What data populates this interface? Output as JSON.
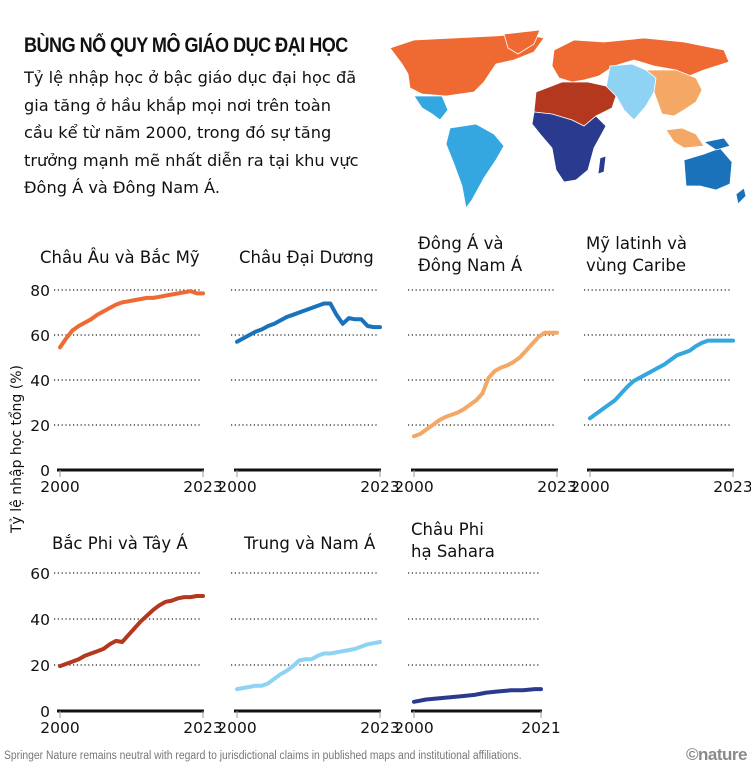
{
  "header": {
    "title": "BÙNG NỔ QUY MÔ GIÁO DỤC ĐẠI HỌC",
    "subtitle": "Tỷ lệ nhập học ở bậc giáo dục đại học đã gia tăng ở hầu khắp mọi nơi trên toàn cầu kể từ năm 2000, trong đó sự tăng trưởng mạnh mẽ nhất diễn ra tại khu vực Đông Á và Đông Nam Á."
  },
  "map": {
    "regions": [
      {
        "name": "Châu Âu và Bắc Mỹ",
        "color": "#ef6a32"
      },
      {
        "name": "Châu Đại Dương",
        "color": "#1a72bb"
      },
      {
        "name": "Đông Á và Đông Nam Á",
        "color": "#f5a765"
      },
      {
        "name": "Mỹ latinh và vùng Caribe",
        "color": "#34a7e0"
      },
      {
        "name": "Bắc Phi và Tây Á",
        "color": "#b3381e"
      },
      {
        "name": "Trung và Nam Á",
        "color": "#8fd3f4"
      },
      {
        "name": "Châu Phi hạ Sahara",
        "color": "#2a3b8f"
      }
    ]
  },
  "footer": {
    "disclaimer": "Springer Nature remains neutral with regard to jurisdictional claims in published maps and institutional affiliations.",
    "logo": "©nature"
  },
  "chart_data": [
    {
      "type": "line",
      "title": "Châu Âu và Bắc Mỹ",
      "title_lines": [
        "Châu Âu và Bắc Mỹ"
      ],
      "color": "#ef6a32",
      "ylabel": "Tỷ lệ nhập học tổng (%)",
      "xlim": [
        2000,
        2023
      ],
      "ylim": [
        0,
        80
      ],
      "yticks": [
        0,
        20,
        40,
        60,
        80
      ],
      "xtick_labels": [
        "2000",
        "2023"
      ],
      "show_y_ticks": true,
      "grid": true,
      "x": [
        2000,
        2001,
        2002,
        2003,
        2004,
        2005,
        2006,
        2007,
        2008,
        2009,
        2010,
        2011,
        2012,
        2013,
        2014,
        2015,
        2016,
        2017,
        2018,
        2019,
        2020,
        2021,
        2022,
        2023
      ],
      "values": [
        54.5,
        58.5,
        62,
        64,
        65.5,
        67,
        69,
        70.5,
        72,
        73.5,
        74.5,
        75,
        75.5,
        76,
        76.5,
        76.5,
        77,
        77.5,
        78,
        78.5,
        79,
        79.5,
        78.5,
        78.5
      ]
    },
    {
      "type": "line",
      "title": "Châu Đại Dương",
      "title_lines": [
        "Châu Đại Dương"
      ],
      "color": "#1a72bb",
      "xlim": [
        2000,
        2023
      ],
      "ylim": [
        0,
        80
      ],
      "yticks": [
        0,
        20,
        40,
        60,
        80
      ],
      "xtick_labels": [
        "2000",
        "2023"
      ],
      "show_y_ticks": false,
      "grid": true,
      "x": [
        2000,
        2001,
        2002,
        2003,
        2004,
        2005,
        2006,
        2007,
        2008,
        2009,
        2010,
        2011,
        2012,
        2013,
        2014,
        2015,
        2016,
        2017,
        2018,
        2019,
        2020,
        2021,
        2022,
        2023
      ],
      "values": [
        57,
        58.5,
        60,
        61.5,
        62.5,
        64,
        65,
        66.5,
        68,
        69,
        70,
        71,
        72,
        73,
        74,
        74,
        69,
        65,
        67.5,
        67,
        67,
        64,
        63.5,
        63.5
      ]
    },
    {
      "type": "line",
      "title": "Đông Á và Đông Nam Á",
      "title_lines": [
        "Đông Á và",
        "Đông Nam Á"
      ],
      "color": "#f5a765",
      "xlim": [
        2000,
        2023
      ],
      "ylim": [
        0,
        80
      ],
      "yticks": [
        0,
        20,
        40,
        60,
        80
      ],
      "xtick_labels": [
        "2000",
        "2023"
      ],
      "show_y_ticks": false,
      "grid": true,
      "x": [
        2000,
        2001,
        2002,
        2003,
        2004,
        2005,
        2006,
        2007,
        2008,
        2009,
        2010,
        2011,
        2012,
        2013,
        2014,
        2015,
        2016,
        2017,
        2018,
        2019,
        2020,
        2021,
        2022,
        2023
      ],
      "values": [
        15,
        16,
        18,
        20,
        22,
        23.5,
        24.5,
        25.5,
        27,
        29,
        31,
        34,
        41,
        44,
        45.5,
        46.5,
        48,
        50,
        53,
        56,
        59,
        61,
        61,
        61
      ]
    },
    {
      "type": "line",
      "title": "Mỹ latinh và vùng Caribe",
      "title_lines": [
        "Mỹ latinh và",
        "vùng Caribe"
      ],
      "color": "#34a7e0",
      "xlim": [
        2000,
        2023
      ],
      "ylim": [
        0,
        80
      ],
      "yticks": [
        0,
        20,
        40,
        60,
        80
      ],
      "xtick_labels": [
        "2000",
        "2023"
      ],
      "show_y_ticks": false,
      "grid": true,
      "x": [
        2000,
        2001,
        2002,
        2003,
        2004,
        2005,
        2006,
        2007,
        2008,
        2009,
        2010,
        2011,
        2012,
        2013,
        2014,
        2015,
        2016,
        2017,
        2018,
        2019,
        2020,
        2021,
        2022,
        2023
      ],
      "values": [
        23,
        25,
        27,
        29,
        31,
        34,
        37,
        39.5,
        41,
        42.5,
        44,
        45.5,
        47,
        49,
        51,
        52,
        53,
        55,
        56.5,
        57.5,
        57.5,
        57.5,
        57.5,
        57.5
      ]
    },
    {
      "type": "line",
      "title": "Bắc Phi và Tây Á",
      "title_lines": [
        "Bắc Phi và Tây Á"
      ],
      "color": "#b3381e",
      "xlim": [
        2000,
        2023
      ],
      "ylim": [
        0,
        60
      ],
      "yticks": [
        0,
        20,
        40,
        60
      ],
      "xtick_labels": [
        "2000",
        "2023"
      ],
      "show_y_ticks": true,
      "grid": true,
      "x": [
        2000,
        2001,
        2002,
        2003,
        2004,
        2005,
        2006,
        2007,
        2008,
        2009,
        2010,
        2011,
        2012,
        2013,
        2014,
        2015,
        2016,
        2017,
        2018,
        2019,
        2020,
        2021,
        2022,
        2023
      ],
      "values": [
        19.5,
        20.5,
        21.5,
        22.5,
        24,
        25,
        26,
        27,
        29,
        30.5,
        30,
        33,
        36,
        39,
        41.5,
        44,
        46,
        47.5,
        48,
        49,
        49.5,
        49.5,
        50,
        50
      ]
    },
    {
      "type": "line",
      "title": "Trung và Nam Á",
      "title_lines": [
        "Trung và Nam Á"
      ],
      "color": "#8fd3f4",
      "xlim": [
        2000,
        2023
      ],
      "ylim": [
        0,
        60
      ],
      "yticks": [
        0,
        20,
        40,
        60
      ],
      "xtick_labels": [
        "2000",
        "2023"
      ],
      "show_y_ticks": false,
      "grid": true,
      "x": [
        2000,
        2001,
        2002,
        2003,
        2004,
        2005,
        2006,
        2007,
        2008,
        2009,
        2010,
        2011,
        2012,
        2013,
        2014,
        2015,
        2016,
        2017,
        2018,
        2019,
        2020,
        2021,
        2022,
        2023
      ],
      "values": [
        9.5,
        10,
        10.5,
        11,
        11,
        12,
        14,
        16,
        17.5,
        19.5,
        22,
        22.5,
        22.5,
        24,
        25,
        25,
        25.5,
        26,
        26.5,
        27,
        28,
        29,
        29.5,
        30
      ]
    },
    {
      "type": "line",
      "title": "Châu Phi hạ Sahara",
      "title_lines": [
        "Châu Phi",
        "hạ Sahara"
      ],
      "color": "#2a3b8f",
      "xlim": [
        2000,
        2021
      ],
      "ylim": [
        0,
        60
      ],
      "yticks": [
        0,
        20,
        40,
        60
      ],
      "xtick_labels": [
        "2000",
        "2021"
      ],
      "show_y_ticks": false,
      "grid": true,
      "x": [
        2000,
        2002,
        2004,
        2006,
        2008,
        2010,
        2012,
        2014,
        2016,
        2018,
        2020,
        2021
      ],
      "values": [
        4,
        5,
        5.5,
        6,
        6.5,
        7,
        8,
        8.5,
        9,
        9,
        9.5,
        9.5
      ]
    }
  ]
}
